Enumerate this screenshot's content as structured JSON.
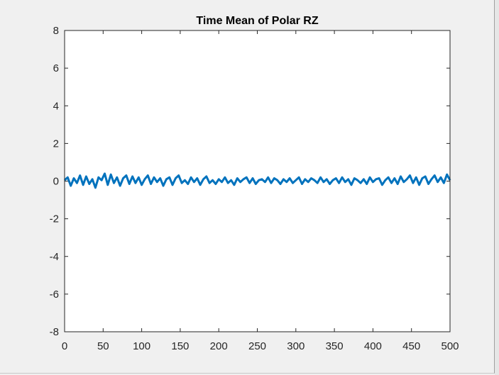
{
  "chart_data": {
    "type": "line",
    "title": "Time Mean of Polar RZ",
    "xlabel": "",
    "ylabel": "",
    "xlim": [
      0,
      500
    ],
    "ylim": [
      -8,
      8
    ],
    "xticks": [
      0,
      50,
      100,
      150,
      200,
      250,
      300,
      350,
      400,
      450,
      500
    ],
    "yticks": [
      -8,
      -6,
      -4,
      -2,
      0,
      2,
      4,
      6,
      8
    ],
    "xtick_labels": [
      "0",
      "50",
      "100",
      "150",
      "200",
      "250",
      "300",
      "350",
      "400",
      "450",
      "500"
    ],
    "ytick_labels": [
      "-8",
      "-6",
      "-4",
      "-2",
      "0",
      "2",
      "4",
      "6",
      "8"
    ],
    "grid": false,
    "line_color": "#0072BD",
    "series": [
      {
        "x": [
          0,
          4,
          8,
          12,
          16,
          20,
          24,
          28,
          32,
          36,
          40,
          44,
          48,
          52,
          56,
          60,
          64,
          68,
          72,
          76,
          80,
          84,
          88,
          92,
          96,
          100,
          104,
          108,
          112,
          116,
          120,
          124,
          128,
          132,
          136,
          140,
          144,
          148,
          152,
          156,
          160,
          164,
          168,
          172,
          176,
          180,
          184,
          188,
          192,
          196,
          200,
          204,
          208,
          212,
          216,
          220,
          224,
          228,
          232,
          236,
          240,
          244,
          248,
          252,
          256,
          260,
          264,
          268,
          272,
          276,
          280,
          284,
          288,
          292,
          296,
          300,
          304,
          308,
          312,
          316,
          320,
          324,
          328,
          332,
          336,
          340,
          344,
          348,
          352,
          356,
          360,
          364,
          368,
          372,
          376,
          380,
          384,
          388,
          392,
          396,
          400,
          404,
          408,
          412,
          416,
          420,
          424,
          428,
          432,
          436,
          440,
          444,
          448,
          452,
          456,
          460,
          464,
          468,
          472,
          476,
          480,
          484,
          488,
          492,
          496,
          500
        ],
        "y": [
          0.05,
          0.2,
          -0.25,
          0.15,
          -0.1,
          0.3,
          -0.2,
          0.25,
          -0.15,
          0.1,
          -0.35,
          0.2,
          0.05,
          0.4,
          -0.2,
          0.35,
          -0.1,
          0.2,
          -0.25,
          0.15,
          0.3,
          -0.15,
          0.25,
          -0.1,
          0.2,
          -0.2,
          0.1,
          0.3,
          -0.15,
          0.2,
          -0.05,
          0.15,
          -0.25,
          0.1,
          0.2,
          -0.2,
          0.15,
          0.3,
          -0.1,
          0.05,
          -0.15,
          0.2,
          -0.05,
          0.15,
          -0.2,
          0.1,
          0.25,
          -0.1,
          0.05,
          -0.15,
          0.1,
          -0.05,
          0.2,
          -0.1,
          0.05,
          -0.2,
          0.15,
          -0.05,
          0.1,
          0.2,
          -0.1,
          0.15,
          -0.15,
          0.05,
          0.1,
          -0.05,
          0.2,
          -0.1,
          0.15,
          0.05,
          -0.15,
          0.1,
          -0.05,
          0.15,
          -0.1,
          0.05,
          0.2,
          -0.15,
          0.1,
          -0.05,
          0.15,
          0.05,
          -0.1,
          0.2,
          -0.05,
          0.1,
          -0.15,
          0.05,
          0.15,
          -0.1,
          0.2,
          -0.05,
          0.1,
          -0.2,
          0.15,
          0.05,
          -0.1,
          0.1,
          -0.15,
          0.2,
          -0.05,
          0.1,
          0.15,
          -0.2,
          0.05,
          0.2,
          -0.1,
          0.15,
          -0.15,
          0.25,
          -0.05,
          0.1,
          0.3,
          -0.1,
          0.2,
          -0.2,
          0.15,
          0.25,
          -0.15,
          0.1,
          0.3,
          -0.05,
          0.2,
          -0.1,
          0.35,
          0.05
        ]
      }
    ]
  }
}
